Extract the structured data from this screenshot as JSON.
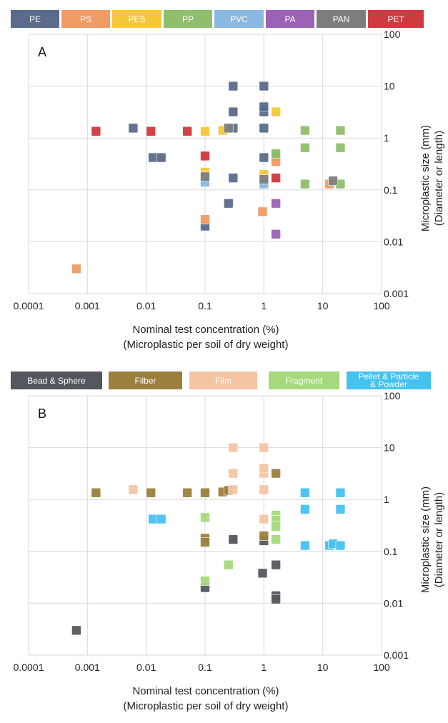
{
  "chart_data": [
    {
      "type": "scatter",
      "panel_label": "A",
      "xlabel": "Nominal test concentration (%)",
      "xlabel_line2": "(Microplastic per soil of dry weight)",
      "ylabel": "Microplastic size (mm)",
      "ylabel_line2": "(Diameter or length)",
      "x_scale": "log",
      "y_scale": "log",
      "xlim": [
        0.0001,
        100
      ],
      "ylim": [
        0.001,
        100
      ],
      "x_ticks": [
        "0.0001",
        "0.001",
        "0.01",
        "0.1",
        "1",
        "10",
        "100"
      ],
      "y_ticks": [
        "0.001",
        "0.01",
        "0.1",
        "1",
        "10",
        "100"
      ],
      "grid": true,
      "legend_position": "top",
      "series": [
        {
          "name": "PE",
          "color": "#5a6b8c",
          "points": [
            [
              0.006,
              1.55
            ],
            [
              0.013,
              0.42
            ],
            [
              0.018,
              0.42
            ],
            [
              0.25,
              0.055
            ],
            [
              0.3,
              0.17
            ],
            [
              0.3,
              3.2
            ],
            [
              0.3,
              10
            ],
            [
              0.3,
              1.55
            ],
            [
              0.1,
              0.02
            ],
            [
              1,
              0.42
            ],
            [
              1,
              1.55
            ],
            [
              1,
              3.2
            ],
            [
              1,
              4
            ],
            [
              1,
              10
            ],
            [
              1.6,
              0.45
            ]
          ]
        },
        {
          "name": "PS",
          "color": "#f09b63",
          "points": [
            [
              0.00065,
              0.003
            ],
            [
              0.1,
              0.027
            ],
            [
              0.95,
              0.038
            ],
            [
              1.6,
              0.35
            ],
            [
              13,
              0.13
            ]
          ]
        },
        {
          "name": "PES",
          "color": "#f7c73a",
          "points": [
            [
              0.1,
              1.35
            ],
            [
              0.2,
              1.4
            ],
            [
              1,
              0.2
            ],
            [
              1.6,
              3.2
            ],
            [
              0.1,
              0.22
            ]
          ]
        },
        {
          "name": "PP",
          "color": "#8fbf6a",
          "points": [
            [
              5,
              1.4
            ],
            [
              5,
              0.65
            ],
            [
              5,
              0.13
            ],
            [
              20,
              1.4
            ],
            [
              20,
              0.65
            ],
            [
              20,
              0.13
            ],
            [
              1.6,
              0.5
            ]
          ]
        },
        {
          "name": "PVC",
          "color": "#8ab8e0",
          "points": [
            [
              0.1,
              0.14
            ],
            [
              1,
              0.13
            ]
          ]
        },
        {
          "name": "PA",
          "color": "#9b62b5",
          "points": [
            [
              1.6,
              0.055
            ],
            [
              1.6,
              0.014
            ]
          ]
        },
        {
          "name": "PAN",
          "color": "#7d7d7d",
          "points": [
            [
              0.1,
              0.18
            ],
            [
              0.25,
              1.55
            ],
            [
              1,
              0.16
            ],
            [
              15,
              0.15
            ]
          ]
        },
        {
          "name": "PET",
          "color": "#d0393f",
          "points": [
            [
              0.0014,
              1.35
            ],
            [
              0.012,
              1.35
            ],
            [
              0.05,
              1.35
            ],
            [
              0.1,
              0.45
            ],
            [
              1.6,
              0.17
            ]
          ]
        }
      ]
    },
    {
      "type": "scatter",
      "panel_label": "B",
      "xlabel": "Nominal test concentration (%)",
      "xlabel_line2": "(Microplastic per soil of dry weight)",
      "ylabel": "Microplastic size (mm)",
      "ylabel_line2": "(Diameter or length)",
      "x_scale": "log",
      "y_scale": "log",
      "xlim": [
        0.0001,
        100
      ],
      "ylim": [
        0.001,
        100
      ],
      "x_ticks": [
        "0.0001",
        "0.001",
        "0.01",
        "0.1",
        "1",
        "10",
        "100"
      ],
      "y_ticks": [
        "0.001",
        "0.01",
        "0.1",
        "1",
        "10",
        "100"
      ],
      "grid": true,
      "legend_position": "top",
      "series": [
        {
          "name": "Bead & Sphere",
          "color": "#54585e",
          "points": [
            [
              0.00065,
              0.003
            ],
            [
              0.1,
              0.02
            ],
            [
              0.3,
              0.17
            ],
            [
              0.95,
              0.038
            ],
            [
              1,
              0.16
            ],
            [
              1.6,
              0.055
            ],
            [
              1.6,
              0.014
            ],
            [
              1.6,
              0.012
            ]
          ]
        },
        {
          "name": "Filber",
          "color": "#9c7f3d",
          "points": [
            [
              0.0014,
              1.35
            ],
            [
              0.012,
              1.35
            ],
            [
              0.05,
              1.35
            ],
            [
              0.1,
              1.35
            ],
            [
              0.2,
              1.4
            ],
            [
              0.25,
              1.5
            ],
            [
              0.1,
              0.18
            ],
            [
              1,
              0.2
            ],
            [
              1.6,
              3.2
            ],
            [
              0.1,
              0.15
            ]
          ]
        },
        {
          "name": "Film",
          "color": "#f5c4a3",
          "points": [
            [
              0.006,
              1.55
            ],
            [
              0.3,
              1.55
            ],
            [
              0.3,
              3.2
            ],
            [
              0.3,
              10
            ],
            [
              1,
              1.55
            ],
            [
              1,
              3.2
            ],
            [
              1,
              4
            ],
            [
              1,
              10
            ],
            [
              1,
              0.42
            ]
          ]
        },
        {
          "name": "Fragment",
          "color": "#a6d97c",
          "points": [
            [
              0.1,
              0.45
            ],
            [
              0.1,
              0.027
            ],
            [
              0.25,
              0.055
            ],
            [
              1.6,
              0.5
            ],
            [
              1.6,
              0.4
            ],
            [
              1.6,
              0.3
            ],
            [
              1.6,
              0.17
            ]
          ]
        },
        {
          "name": "Pellet & Particle & Powder",
          "name_line1": "Pellet & Particle",
          "name_line2": "& Powder",
          "color": "#45c2ef",
          "points": [
            [
              0.013,
              0.42
            ],
            [
              0.018,
              0.42
            ],
            [
              5,
              1.35
            ],
            [
              5,
              0.65
            ],
            [
              5,
              0.13
            ],
            [
              13,
              0.13
            ],
            [
              15,
              0.14
            ],
            [
              20,
              1.35
            ],
            [
              20,
              0.65
            ],
            [
              20,
              0.13
            ]
          ]
        }
      ]
    }
  ]
}
